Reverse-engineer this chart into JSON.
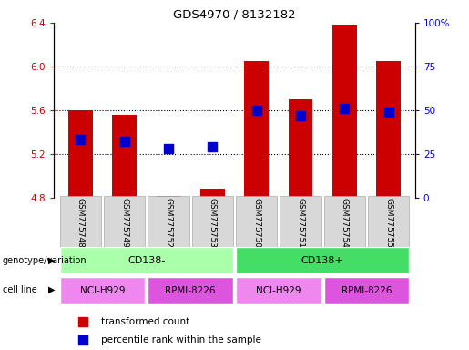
{
  "title": "GDS4970 / 8132182",
  "samples": [
    "GSM775748",
    "GSM775749",
    "GSM775752",
    "GSM775753",
    "GSM775750",
    "GSM775751",
    "GSM775754",
    "GSM775755"
  ],
  "bar_values": [
    5.6,
    5.56,
    4.82,
    4.88,
    6.05,
    5.7,
    6.38,
    6.05
  ],
  "dot_values": [
    5.33,
    5.32,
    5.25,
    5.27,
    5.6,
    5.55,
    5.62,
    5.58
  ],
  "bar_bottom": 4.8,
  "ylim": [
    4.8,
    6.4
  ],
  "yticks": [
    4.8,
    5.2,
    5.6,
    6.0,
    6.4
  ],
  "right_yticks": [
    0,
    25,
    50,
    75,
    100
  ],
  "right_ylim": [
    0,
    100
  ],
  "bar_color": "#cc0000",
  "dot_color": "#0000cc",
  "bar_width": 0.55,
  "genotype_labels": [
    "CD138-",
    "CD138+"
  ],
  "genotype_colors": [
    "#aaffaa",
    "#44dd66"
  ],
  "cell_line_labels": [
    "NCI-H929",
    "RPMI-8226",
    "NCI-H929",
    "RPMI-8226"
  ],
  "cell_line_colors_alt": [
    "#ee88ee",
    "#dd55dd",
    "#ee88ee",
    "#dd55dd"
  ],
  "legend_bar_label": "transformed count",
  "legend_dot_label": "percentile rank within the sample",
  "background_color": "#ffffff",
  "tick_color_left": "#cc0000",
  "tick_color_right": "#0000cc",
  "gridline_ticks": [
    5.2,
    5.6,
    6.0
  ],
  "sample_box_color": "#d8d8d8",
  "sample_box_edge": "#aaaaaa"
}
